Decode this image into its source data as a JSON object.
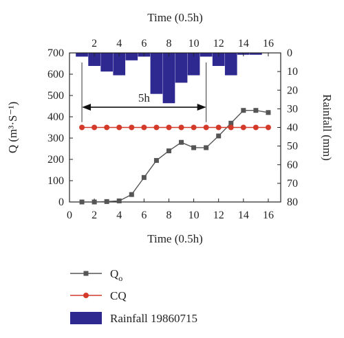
{
  "chart_data": {
    "type": "line",
    "top_axis_title": "Time (0.5h)",
    "xlabel": "Time (0.5h)",
    "ylabel": "Q (m³·S⁻¹)",
    "y2label": "Rainfall (mm)",
    "xlim": [
      0,
      17
    ],
    "ylim": [
      0,
      700
    ],
    "y2lim": [
      0,
      80
    ],
    "y2_inverted": true,
    "bottom_x_ticks": [
      "0",
      "2",
      "4",
      "6",
      "8",
      "10",
      "12",
      "14",
      "16"
    ],
    "top_x_ticks": [
      "2",
      "4",
      "6",
      "8",
      "10",
      "12",
      "14",
      "16"
    ],
    "y_ticks": [
      "0",
      "100",
      "200",
      "300",
      "400",
      "500",
      "600",
      "700"
    ],
    "y2_ticks": [
      "0",
      "10",
      "20",
      "30",
      "40",
      "50",
      "60",
      "70",
      "80"
    ],
    "annotation": {
      "label": "5h",
      "from_x": 1,
      "to_x": 11,
      "y": 445
    },
    "rainfall": {
      "name": "Rainfall 19860715",
      "color": "#2e2891",
      "x": [
        1,
        2,
        3,
        4,
        5,
        6,
        7,
        8,
        9,
        10,
        11,
        12,
        13,
        14,
        15,
        16
      ],
      "values": [
        2,
        7,
        10,
        12,
        4,
        2,
        22,
        27,
        16,
        12,
        2,
        7,
        12,
        1,
        1,
        0
      ]
    },
    "series": [
      {
        "name": "Qo",
        "color": "#555555",
        "marker": "square",
        "x": [
          1,
          2,
          3,
          4,
          5,
          6,
          7,
          8,
          9,
          10,
          11,
          12,
          13,
          14,
          15,
          16
        ],
        "values": [
          0,
          0,
          2,
          5,
          35,
          115,
          195,
          240,
          280,
          255,
          255,
          310,
          370,
          430,
          430,
          420
        ]
      },
      {
        "name": "CQ",
        "color": "#d43a2a",
        "marker": "circle",
        "x": [
          1,
          2,
          3,
          4,
          5,
          6,
          7,
          8,
          9,
          10,
          11,
          12,
          13,
          14,
          15,
          16
        ],
        "values": [
          350,
          350,
          350,
          350,
          350,
          350,
          350,
          350,
          350,
          350,
          350,
          350,
          350,
          350,
          350,
          350
        ]
      }
    ],
    "legend": [
      {
        "label": "Q",
        "subscript": "o"
      },
      {
        "label": "CQ",
        "subscript": ""
      },
      {
        "label": "Rainfall 19860715",
        "subscript": ""
      }
    ]
  }
}
